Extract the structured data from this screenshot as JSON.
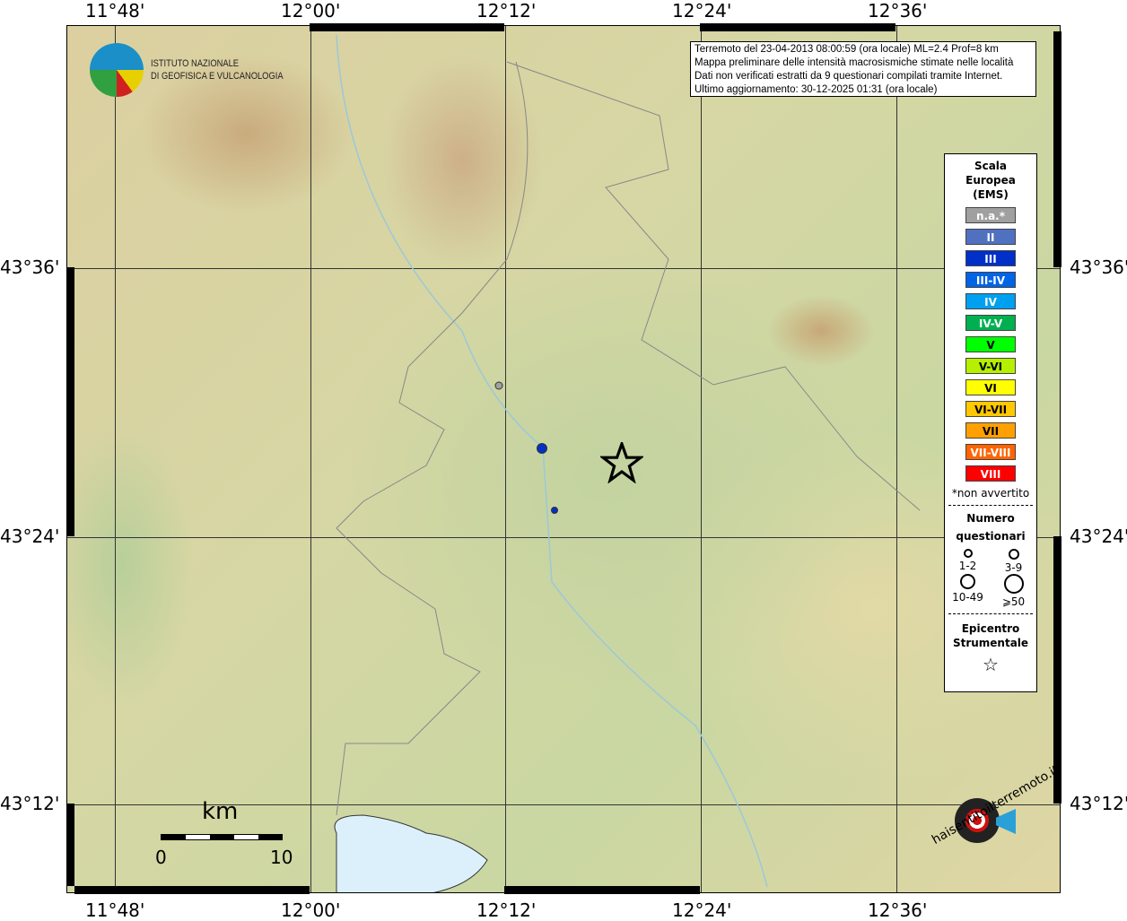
{
  "info": {
    "lines": [
      "Terremoto del 23-04-2013 08:00:59 (ora locale) ML=2.4 Prof=8 km",
      "Mappa preliminare delle intensità macrosismiche stimate nelle località",
      "Dati non verificati estratti da 9 questionari compilati tramite Internet.",
      "Ultimo aggiornamento: 30-12-2025 01:31 (ora locale)"
    ]
  },
  "logo": {
    "name1": "ISTITUTO NAZIONALE",
    "name2": "DI GEOFISICA E VULCANOLOGIA",
    "hsit": "haisentitoilterremoto.it",
    "www": "www."
  },
  "axes": {
    "lon": [
      "11°48'",
      "12°00'",
      "12°12'",
      "12°24'",
      "12°36'"
    ],
    "lat": [
      "43°36'",
      "43°24'",
      "43°12'"
    ]
  },
  "scale": {
    "unit": "km",
    "min": "0",
    "max": "10"
  },
  "legend": {
    "title": [
      "Scala",
      "Europea",
      "(EMS)"
    ],
    "classes": [
      {
        "label": "n.a.*",
        "color": "#a0a0a0"
      },
      {
        "label": "II",
        "color": "#5070c0"
      },
      {
        "label": "III",
        "color": "#0030c8"
      },
      {
        "label": "III-IV",
        "color": "#0064e6"
      },
      {
        "label": "IV",
        "color": "#00a0f0"
      },
      {
        "label": "IV-V",
        "color": "#00b050"
      },
      {
        "label": "V",
        "color": "#00ff00"
      },
      {
        "label": "V-VI",
        "color": "#b4f000"
      },
      {
        "label": "VI",
        "color": "#ffff00"
      },
      {
        "label": "VI-VII",
        "color": "#ffc800"
      },
      {
        "label": "VII",
        "color": "#ffa000"
      },
      {
        "label": "VII-VIII",
        "color": "#ff6400"
      },
      {
        "label": "VIII",
        "color": "#ff0000"
      }
    ],
    "note": "*non avvertito",
    "count_title": [
      "Numero",
      "questionari"
    ],
    "counts": [
      "1-2",
      "3-9",
      "10-49",
      "⩾50"
    ],
    "epi_title": [
      "Epicentro",
      "Strumentale"
    ]
  },
  "points": [
    {
      "intensity": "n.a.",
      "color": "#a0a0a0"
    },
    {
      "intensity": "III",
      "color": "#0030c8"
    },
    {
      "intensity": "III",
      "color": "#0030c8"
    }
  ]
}
